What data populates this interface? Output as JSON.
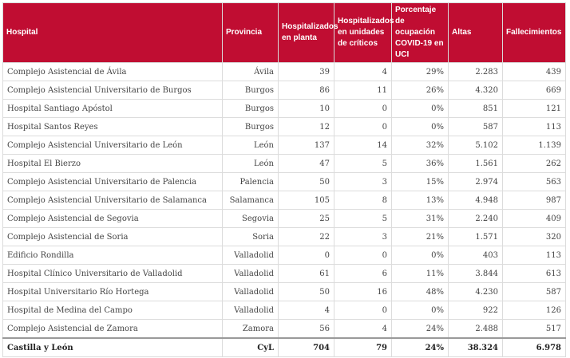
{
  "headers": {
    "hospital": "Hospital",
    "provincia": "Provincia",
    "planta": "Hospitalizados en planta",
    "criticos": "Hospitalizados en unidades de críticos",
    "ocupacion": "Porcentaje de ocupación COVID-19 en UCI",
    "altas": "Altas",
    "fallecimientos": "Fallecimientos"
  },
  "rows": [
    {
      "hospital": "Complejo Asistencial de Ávila",
      "provincia": "Ávila",
      "planta": "39",
      "criticos": "4",
      "ocupacion": "29%",
      "altas": "2.283",
      "fallecimientos": "439"
    },
    {
      "hospital": "Complejo Asistencial Universitario de Burgos",
      "provincia": "Burgos",
      "planta": "86",
      "criticos": "11",
      "ocupacion": "26%",
      "altas": "4.320",
      "fallecimientos": "669"
    },
    {
      "hospital": "Hospital Santiago Apóstol",
      "provincia": "Burgos",
      "planta": "10",
      "criticos": "0",
      "ocupacion": "0%",
      "altas": "851",
      "fallecimientos": "121"
    },
    {
      "hospital": "Hospital Santos Reyes",
      "provincia": "Burgos",
      "planta": "12",
      "criticos": "0",
      "ocupacion": "0%",
      "altas": "587",
      "fallecimientos": "113"
    },
    {
      "hospital": "Complejo Asistencial Universitario de León",
      "provincia": "León",
      "planta": "137",
      "criticos": "14",
      "ocupacion": "32%",
      "altas": "5.102",
      "fallecimientos": "1.139"
    },
    {
      "hospital": "Hospital El Bierzo",
      "provincia": "León",
      "planta": "47",
      "criticos": "5",
      "ocupacion": "36%",
      "altas": "1.561",
      "fallecimientos": "262"
    },
    {
      "hospital": "Complejo Asistencial Universitario de Palencia",
      "provincia": "Palencia",
      "planta": "50",
      "criticos": "3",
      "ocupacion": "15%",
      "altas": "2.974",
      "fallecimientos": "563"
    },
    {
      "hospital": "Complejo Asistencial Universitario de Salamanca",
      "provincia": "Salamanca",
      "planta": "105",
      "criticos": "8",
      "ocupacion": "13%",
      "altas": "4.948",
      "fallecimientos": "987"
    },
    {
      "hospital": "Complejo Asistencial de Segovia",
      "provincia": "Segovia",
      "planta": "25",
      "criticos": "5",
      "ocupacion": "31%",
      "altas": "2.240",
      "fallecimientos": "409"
    },
    {
      "hospital": "Complejo Asistencial de Soria",
      "provincia": "Soria",
      "planta": "22",
      "criticos": "3",
      "ocupacion": "21%",
      "altas": "1.571",
      "fallecimientos": "320"
    },
    {
      "hospital": "Edificio Rondilla",
      "provincia": "Valladolid",
      "planta": "0",
      "criticos": "0",
      "ocupacion": "0%",
      "altas": "403",
      "fallecimientos": "113"
    },
    {
      "hospital": "Hospital Clínico Universitario de Valladolid",
      "provincia": "Valladolid",
      "planta": "61",
      "criticos": "6",
      "ocupacion": "11%",
      "altas": "3.844",
      "fallecimientos": "613"
    },
    {
      "hospital": "Hospital Universitario Río Hortega",
      "provincia": "Valladolid",
      "planta": "50",
      "criticos": "16",
      "ocupacion": "48%",
      "altas": "4.230",
      "fallecimientos": "587"
    },
    {
      "hospital": "Hospital de Medina del Campo",
      "provincia": "Valladolid",
      "planta": "4",
      "criticos": "0",
      "ocupacion": "0%",
      "altas": "922",
      "fallecimientos": "126"
    },
    {
      "hospital": "Complejo Asistencial de Zamora",
      "provincia": "Zamora",
      "planta": "56",
      "criticos": "4",
      "ocupacion": "24%",
      "altas": "2.488",
      "fallecimientos": "517"
    }
  ],
  "total": {
    "hospital": "Castilla y León",
    "provincia": "CyL",
    "planta": "704",
    "criticos": "79",
    "ocupacion": "24%",
    "altas": "38.324",
    "fallecimientos": "6.978"
  }
}
